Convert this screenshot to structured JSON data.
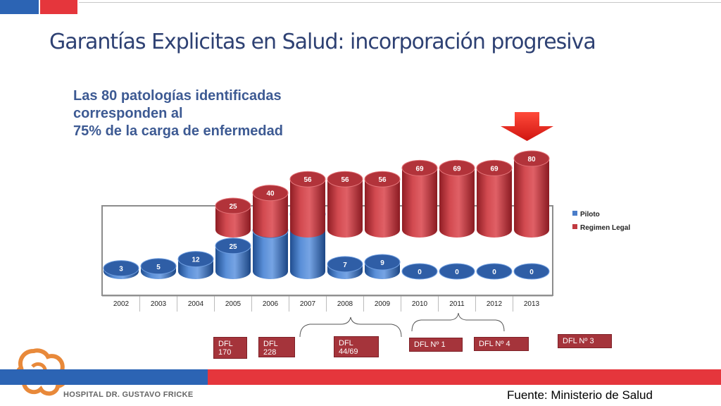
{
  "slide": {
    "title": "Garantías Explicitas en Salud: incorporación progresiva",
    "headline": [
      "Las  80 patologías identificadas",
      "corresponden al",
      "75% de la carga de enfermedad"
    ],
    "source": "Fuente: Ministerio de Salud",
    "hospital": "HOSPITAL DR. GUSTAVO FRICKE"
  },
  "colors": {
    "title": "#2e4173",
    "headline": "#3d5a93",
    "piloto": "#4a7dc9",
    "regimen": "#c13a40",
    "dfl_box": "#a5343b",
    "brand_blue": "#2c64b4",
    "brand_red": "#e5363c",
    "arrow": "#e8231d"
  },
  "chart_data": {
    "type": "bar",
    "subtype": "3d-cylinder",
    "categories": [
      "2002",
      "2003",
      "2004",
      "2005",
      "2006",
      "2007",
      "2008",
      "2009",
      "2010",
      "2011",
      "2012",
      "2013"
    ],
    "series": [
      {
        "name": "Piloto",
        "values": [
          3,
          5,
          12,
          25,
          40,
          56,
          7,
          9,
          0,
          0,
          0,
          0
        ]
      },
      {
        "name": "Regimen Legal",
        "values": [
          null,
          null,
          null,
          25,
          40,
          56,
          56,
          56,
          69,
          69,
          69,
          80
        ]
      }
    ],
    "legend": [
      "Piloto",
      "Regimen Legal"
    ],
    "legend_position": "right",
    "highlight": "2013"
  },
  "decrees": [
    {
      "label": "DFL\n170"
    },
    {
      "label": "DFL\n228"
    },
    {
      "label": "DFL\n44/69"
    },
    {
      "label": "DFL Nº 1"
    },
    {
      "label": "DFL Nº 4"
    },
    {
      "label": "DFL Nº 3"
    }
  ]
}
